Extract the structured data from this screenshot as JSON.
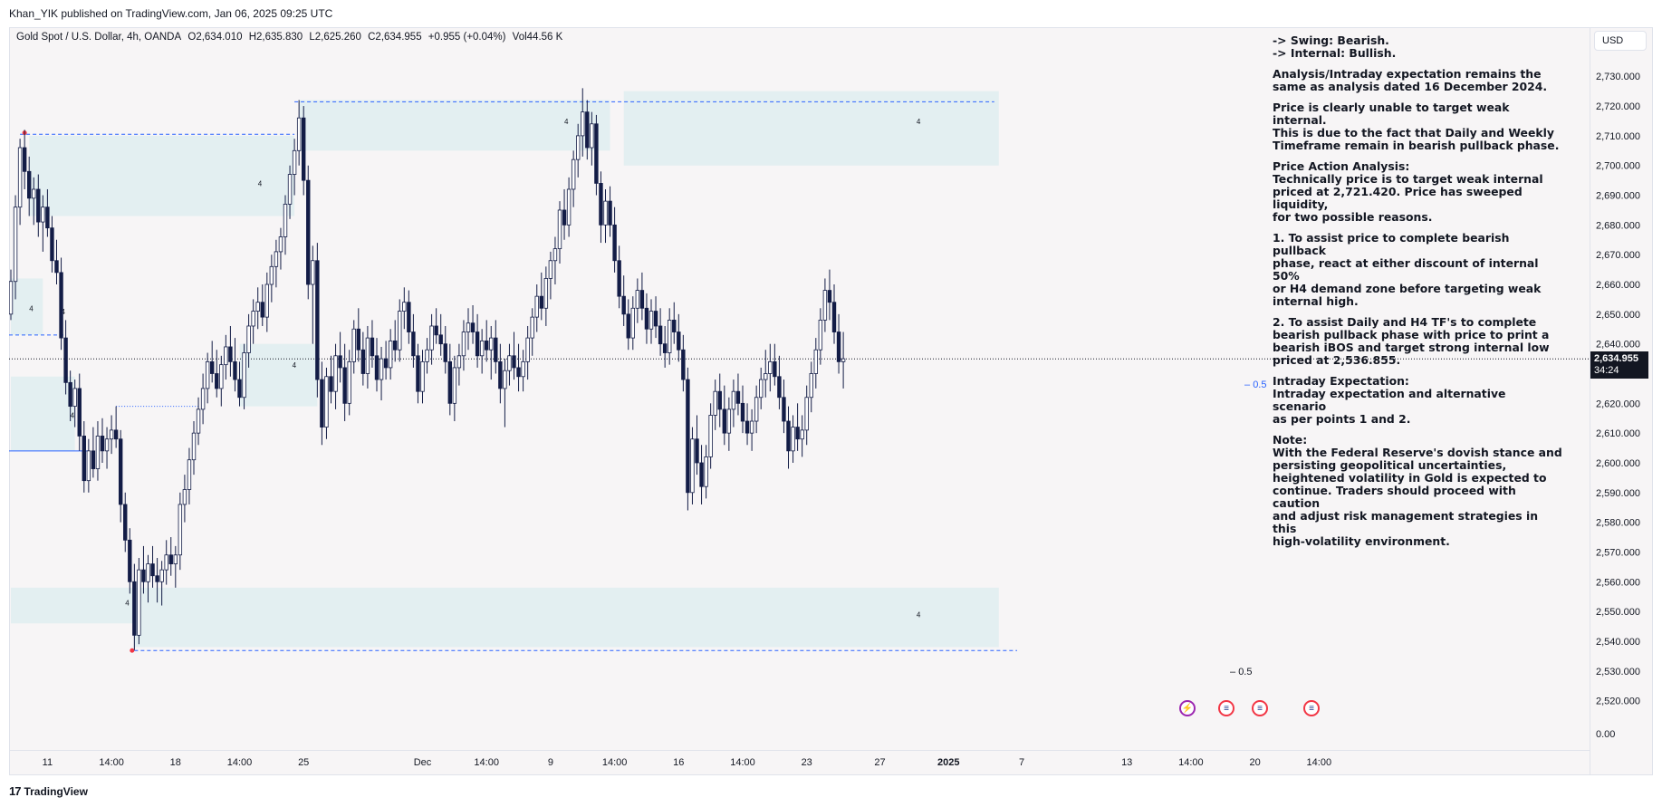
{
  "header": {
    "published": "Khan_YIK published on TradingView.com, Jan 06, 2025 09:25 UTC"
  },
  "legend": {
    "symbol": "Gold Spot / U.S. Dollar, 4h, OANDA",
    "open": "O2,634.010",
    "high": "H2,635.830",
    "low": "L2,625.260",
    "close": "C2,634.955",
    "change": "+0.955 (+0.04%)",
    "volume": "Vol44.56 K"
  },
  "analysis": {
    "lines": [
      [
        "-> Swing:  Bearish.",
        "-> Internal:  Bullish."
      ],
      [
        "Analysis/Intraday expectation remains the",
        "same as analysis dated 16 December 2024."
      ],
      [
        "Price is clearly unable to target weak internal.",
        "This is due to the fact that Daily and Weekly",
        "Timeframe remain in bearish pullback phase."
      ],
      [
        "Price Action Analysis:",
        "Technically price is to target weak internal",
        "priced at 2,721.420. Price has sweeped",
        "liquidity,",
        "for two possible reasons."
      ],
      [
        "1.  To assist price to complete bearish pullback",
        "phase, react at either discount of internal 50%",
        "or H4 demand zone before targeting weak",
        "internal high."
      ],
      [
        "2.  To assist Daily and H4 TF's to complete",
        "bearish pullback phase with price to print a",
        "bearish iBOS and target strong internal low",
        "priced at  2,536.855."
      ],
      [
        "Intraday Expectation:",
        "Intraday expectation and alternative scenario",
        "as per points 1 and 2."
      ],
      [
        "Note:",
        "With the Federal Reserve's dovish stance and",
        "persisting geopolitical uncertainties,",
        "heightened volatility in Gold is expected to",
        "continue. Traders should proceed with caution",
        "and adjust risk management strategies in this",
        "high-volatility environment."
      ]
    ]
  },
  "price_axis": {
    "currency": "USD",
    "current_price": "2,634.955",
    "countdown": "34:24",
    "bottom_label": "0.00"
  },
  "fib_labels": {
    "upper": "0.5",
    "lower": "0.5"
  },
  "zone_labels": [
    "4",
    "4",
    "4",
    "4",
    "4",
    "4",
    "4",
    "4",
    "4"
  ],
  "brand": {
    "name": "TradingView",
    "mark": "17"
  },
  "colors": {
    "background": "#f7f5f6",
    "zone": "#e3eff1",
    "candle": "#131c46",
    "dashed_line": "#2962ff",
    "swing_dot": "#f23645",
    "price_badge": "#131722"
  },
  "event_icons": [
    "lightning-icon",
    "us-flag-icon",
    "us-flag-icon",
    "us-flag-icon"
  ],
  "chart_data": {
    "type": "candlestick",
    "title": "Gold Spot / U.S. Dollar, 4h, OANDA",
    "ylim": [
      2515,
      2745
    ],
    "y_ticks": [
      2520,
      2530,
      2540,
      2550,
      2560,
      2570,
      2580,
      2590,
      2600,
      2610,
      2620,
      2630,
      2640,
      2650,
      2660,
      2670,
      2680,
      2690,
      2700,
      2710,
      2720,
      2730
    ],
    "y_tick_labels": [
      "2,520.000",
      "2,530.000",
      "2,540.000",
      "2,550.000",
      "2,560.000",
      "2,570.000",
      "2,580.000",
      "2,590.000",
      "2,600.000",
      "2,610.000",
      "2,620.000",
      "2,630.000",
      "2,640.000",
      "2,650.000",
      "2,660.000",
      "2,670.000",
      "2,680.000",
      "2,690.000",
      "2,700.000",
      "2,710.000",
      "2,720.000",
      "2,730.000"
    ],
    "x_labels": [
      {
        "i": 8,
        "label": "11",
        "bold": false
      },
      {
        "i": 22,
        "label": "14:00",
        "bold": false
      },
      {
        "i": 36,
        "label": "18",
        "bold": false
      },
      {
        "i": 50,
        "label": "14:00",
        "bold": false
      },
      {
        "i": 64,
        "label": "25",
        "bold": false
      },
      {
        "i": 90,
        "label": "Dec",
        "bold": false
      },
      {
        "i": 104,
        "label": "14:00",
        "bold": false
      },
      {
        "i": 118,
        "label": "9",
        "bold": false
      },
      {
        "i": 132,
        "label": "14:00",
        "bold": false
      },
      {
        "i": 146,
        "label": "16",
        "bold": false
      },
      {
        "i": 160,
        "label": "14:00",
        "bold": false
      },
      {
        "i": 174,
        "label": "23",
        "bold": false
      },
      {
        "i": 190,
        "label": "27",
        "bold": false
      },
      {
        "i": 205,
        "label": "2025",
        "bold": true
      },
      {
        "i": 221,
        "label": "7",
        "bold": false
      },
      {
        "i": 244,
        "label": "13",
        "bold": false
      },
      {
        "i": 258,
        "label": "14:00",
        "bold": false
      },
      {
        "i": 272,
        "label": "20",
        "bold": false
      },
      {
        "i": 286,
        "label": "14:00",
        "bold": false
      }
    ],
    "key_levels": {
      "last_price": 2634.955,
      "weak_internal_high": 2721.42,
      "strong_internal_low": 2536.855
    },
    "zones": [
      {
        "from_i": 4,
        "to_i": 62,
        "low": 2683,
        "high": 2710
      },
      {
        "from_i": 0,
        "to_i": 7,
        "low": 2643,
        "high": 2662
      },
      {
        "from_i": 0,
        "to_i": 14,
        "low": 2604,
        "high": 2629
      },
      {
        "from_i": 50,
        "to_i": 67,
        "low": 2619,
        "high": 2640
      },
      {
        "from_i": 63,
        "to_i": 131,
        "low": 2705,
        "high": 2722
      },
      {
        "from_i": 134,
        "to_i": 216,
        "low": 2700,
        "high": 2725
      },
      {
        "from_i": 0,
        "to_i": 27,
        "low": 2546,
        "high": 2558
      },
      {
        "from_i": 27,
        "to_i": 216,
        "low": 2538,
        "high": 2558
      }
    ],
    "candles": [
      [
        2650,
        2665,
        2648,
        2661
      ],
      [
        2661,
        2690,
        2655,
        2686
      ],
      [
        2686,
        2709,
        2680,
        2706
      ],
      [
        2706,
        2712,
        2692,
        2698
      ],
      [
        2698,
        2703,
        2683,
        2689
      ],
      [
        2689,
        2696,
        2680,
        2692
      ],
      [
        2692,
        2697,
        2676,
        2681
      ],
      [
        2681,
        2690,
        2671,
        2686
      ],
      [
        2686,
        2692,
        2676,
        2679
      ],
      [
        2679,
        2683,
        2664,
        2668
      ],
      [
        2668,
        2675,
        2660,
        2664
      ],
      [
        2664,
        2669,
        2638,
        2642
      ],
      [
        2642,
        2648,
        2623,
        2627
      ],
      [
        2627,
        2631,
        2614,
        2619
      ],
      [
        2619,
        2628,
        2612,
        2625
      ],
      [
        2625,
        2630,
        2604,
        2609
      ],
      [
        2609,
        2614,
        2590,
        2594
      ],
      [
        2594,
        2608,
        2590,
        2604
      ],
      [
        2604,
        2612,
        2595,
        2598
      ],
      [
        2598,
        2614,
        2594,
        2609
      ],
      [
        2609,
        2615,
        2600,
        2604
      ],
      [
        2604,
        2612,
        2598,
        2608
      ],
      [
        2608,
        2616,
        2603,
        2611
      ],
      [
        2611,
        2619,
        2605,
        2608
      ],
      [
        2608,
        2611,
        2580,
        2586
      ],
      [
        2586,
        2590,
        2570,
        2574
      ],
      [
        2574,
        2578,
        2556,
        2560
      ],
      [
        2560,
        2566,
        2537,
        2542
      ],
      [
        2542,
        2568,
        2539,
        2564
      ],
      [
        2564,
        2572,
        2556,
        2560
      ],
      [
        2560,
        2569,
        2553,
        2566
      ],
      [
        2566,
        2572,
        2558,
        2562
      ],
      [
        2562,
        2568,
        2553,
        2560
      ],
      [
        2560,
        2567,
        2552,
        2564
      ],
      [
        2564,
        2574,
        2559,
        2569
      ],
      [
        2569,
        2575,
        2562,
        2566
      ],
      [
        2566,
        2572,
        2558,
        2569
      ],
      [
        2569,
        2590,
        2564,
        2586
      ],
      [
        2586,
        2596,
        2580,
        2591
      ],
      [
        2591,
        2605,
        2586,
        2601
      ],
      [
        2601,
        2614,
        2596,
        2610
      ],
      [
        2610,
        2622,
        2606,
        2618
      ],
      [
        2618,
        2630,
        2613,
        2625
      ],
      [
        2625,
        2637,
        2620,
        2634
      ],
      [
        2634,
        2641,
        2627,
        2630
      ],
      [
        2630,
        2638,
        2622,
        2625
      ],
      [
        2625,
        2636,
        2619,
        2633
      ],
      [
        2633,
        2643,
        2628,
        2639
      ],
      [
        2639,
        2646,
        2629,
        2634
      ],
      [
        2634,
        2642,
        2624,
        2628
      ],
      [
        2628,
        2634,
        2619,
        2622
      ],
      [
        2622,
        2640,
        2618,
        2637
      ],
      [
        2637,
        2650,
        2632,
        2646
      ],
      [
        2646,
        2655,
        2640,
        2651
      ],
      [
        2651,
        2659,
        2645,
        2654
      ],
      [
        2654,
        2660,
        2646,
        2649
      ],
      [
        2649,
        2664,
        2644,
        2660
      ],
      [
        2660,
        2670,
        2654,
        2666
      ],
      [
        2666,
        2675,
        2659,
        2671
      ],
      [
        2671,
        2679,
        2665,
        2676
      ],
      [
        2676,
        2690,
        2670,
        2687
      ],
      [
        2687,
        2700,
        2682,
        2697
      ],
      [
        2697,
        2709,
        2690,
        2705
      ],
      [
        2705,
        2722,
        2700,
        2716
      ],
      [
        2716,
        2720,
        2690,
        2695
      ],
      [
        2695,
        2700,
        2655,
        2660
      ],
      [
        2660,
        2673,
        2640,
        2668
      ],
      [
        2668,
        2674,
        2622,
        2628
      ],
      [
        2628,
        2634,
        2606,
        2612
      ],
      [
        2612,
        2632,
        2608,
        2629
      ],
      [
        2629,
        2636,
        2620,
        2624
      ],
      [
        2624,
        2640,
        2618,
        2636
      ],
      [
        2636,
        2644,
        2627,
        2632
      ],
      [
        2632,
        2640,
        2614,
        2620
      ],
      [
        2620,
        2638,
        2616,
        2634
      ],
      [
        2634,
        2648,
        2630,
        2645
      ],
      [
        2645,
        2652,
        2634,
        2638
      ],
      [
        2638,
        2644,
        2626,
        2630
      ],
      [
        2630,
        2646,
        2625,
        2642
      ],
      [
        2642,
        2648,
        2632,
        2636
      ],
      [
        2636,
        2642,
        2624,
        2628
      ],
      [
        2628,
        2639,
        2621,
        2635
      ],
      [
        2635,
        2641,
        2628,
        2632
      ],
      [
        2632,
        2645,
        2628,
        2641
      ],
      [
        2641,
        2648,
        2634,
        2638
      ],
      [
        2638,
        2655,
        2634,
        2651
      ],
      [
        2651,
        2659,
        2645,
        2654
      ],
      [
        2654,
        2658,
        2640,
        2644
      ],
      [
        2644,
        2650,
        2632,
        2636
      ],
      [
        2636,
        2640,
        2620,
        2624
      ],
      [
        2624,
        2638,
        2620,
        2634
      ],
      [
        2634,
        2642,
        2630,
        2638
      ],
      [
        2638,
        2650,
        2633,
        2646
      ],
      [
        2646,
        2652,
        2640,
        2643
      ],
      [
        2643,
        2650,
        2636,
        2640
      ],
      [
        2640,
        2646,
        2630,
        2634
      ],
      [
        2634,
        2640,
        2616,
        2620
      ],
      [
        2620,
        2636,
        2614,
        2632
      ],
      [
        2632,
        2640,
        2626,
        2636
      ],
      [
        2636,
        2648,
        2631,
        2644
      ],
      [
        2644,
        2652,
        2638,
        2647
      ],
      [
        2647,
        2653,
        2640,
        2644
      ],
      [
        2644,
        2650,
        2632,
        2636
      ],
      [
        2636,
        2645,
        2630,
        2641
      ],
      [
        2641,
        2648,
        2634,
        2638
      ],
      [
        2638,
        2646,
        2628,
        2642
      ],
      [
        2642,
        2648,
        2630,
        2634
      ],
      [
        2634,
        2640,
        2620,
        2625
      ],
      [
        2625,
        2635,
        2612,
        2631
      ],
      [
        2631,
        2640,
        2626,
        2636
      ],
      [
        2636,
        2644,
        2628,
        2632
      ],
      [
        2632,
        2640,
        2624,
        2629
      ],
      [
        2629,
        2638,
        2624,
        2634
      ],
      [
        2634,
        2646,
        2628,
        2642
      ],
      [
        2642,
        2652,
        2636,
        2649
      ],
      [
        2649,
        2660,
        2644,
        2656
      ],
      [
        2656,
        2664,
        2648,
        2652
      ],
      [
        2652,
        2666,
        2646,
        2662
      ],
      [
        2662,
        2671,
        2655,
        2668
      ],
      [
        2668,
        2676,
        2660,
        2672
      ],
      [
        2672,
        2688,
        2667,
        2685
      ],
      [
        2685,
        2692,
        2675,
        2680
      ],
      [
        2680,
        2696,
        2676,
        2692
      ],
      [
        2692,
        2705,
        2686,
        2702
      ],
      [
        2702,
        2714,
        2696,
        2710
      ],
      [
        2710,
        2726,
        2703,
        2718
      ],
      [
        2718,
        2722,
        2702,
        2706
      ],
      [
        2706,
        2718,
        2700,
        2714
      ],
      [
        2714,
        2717,
        2690,
        2694
      ],
      [
        2694,
        2698,
        2674,
        2680
      ],
      [
        2680,
        2692,
        2674,
        2688
      ],
      [
        2688,
        2693,
        2676,
        2680
      ],
      [
        2680,
        2686,
        2664,
        2668
      ],
      [
        2668,
        2673,
        2652,
        2656
      ],
      [
        2656,
        2663,
        2646,
        2650
      ],
      [
        2650,
        2655,
        2638,
        2642
      ],
      [
        2642,
        2656,
        2638,
        2652
      ],
      [
        2652,
        2662,
        2647,
        2658
      ],
      [
        2658,
        2664,
        2648,
        2652
      ],
      [
        2652,
        2657,
        2640,
        2645
      ],
      [
        2645,
        2655,
        2640,
        2651
      ],
      [
        2651,
        2656,
        2642,
        2646
      ],
      [
        2646,
        2652,
        2636,
        2640
      ],
      [
        2640,
        2646,
        2632,
        2637
      ],
      [
        2637,
        2652,
        2633,
        2648
      ],
      [
        2648,
        2654,
        2640,
        2644
      ],
      [
        2644,
        2650,
        2634,
        2638
      ],
      [
        2638,
        2643,
        2624,
        2628
      ],
      [
        2628,
        2632,
        2584,
        2590
      ],
      [
        2590,
        2612,
        2586,
        2608
      ],
      [
        2608,
        2616,
        2596,
        2600
      ],
      [
        2600,
        2606,
        2586,
        2592
      ],
      [
        2592,
        2606,
        2588,
        2602
      ],
      [
        2602,
        2620,
        2598,
        2616
      ],
      [
        2616,
        2628,
        2611,
        2624
      ],
      [
        2624,
        2630,
        2612,
        2618
      ],
      [
        2618,
        2626,
        2606,
        2610
      ],
      [
        2610,
        2622,
        2604,
        2618
      ],
      [
        2618,
        2628,
        2612,
        2624
      ],
      [
        2624,
        2630,
        2616,
        2620
      ],
      [
        2620,
        2626,
        2610,
        2614
      ],
      [
        2614,
        2620,
        2606,
        2610
      ],
      [
        2610,
        2618,
        2604,
        2614
      ],
      [
        2614,
        2626,
        2610,
        2622
      ],
      [
        2622,
        2632,
        2618,
        2628
      ],
      [
        2628,
        2638,
        2622,
        2630
      ],
      [
        2630,
        2640,
        2624,
        2634
      ],
      [
        2634,
        2640,
        2626,
        2629
      ],
      [
        2629,
        2636,
        2618,
        2622
      ],
      [
        2622,
        2628,
        2610,
        2614
      ],
      [
        2614,
        2619,
        2598,
        2604
      ],
      [
        2604,
        2616,
        2600,
        2612
      ],
      [
        2612,
        2620,
        2604,
        2608
      ],
      [
        2608,
        2616,
        2602,
        2611
      ],
      [
        2611,
        2626,
        2606,
        2622
      ],
      [
        2622,
        2634,
        2617,
        2630
      ],
      [
        2630,
        2642,
        2625,
        2638
      ],
      [
        2638,
        2652,
        2633,
        2648
      ],
      [
        2648,
        2662,
        2644,
        2658
      ],
      [
        2658,
        2665,
        2648,
        2654
      ],
      [
        2654,
        2660,
        2640,
        2644
      ],
      [
        2644,
        2650,
        2630,
        2634
      ],
      [
        2634,
        2644,
        2625,
        2635
      ]
    ]
  }
}
